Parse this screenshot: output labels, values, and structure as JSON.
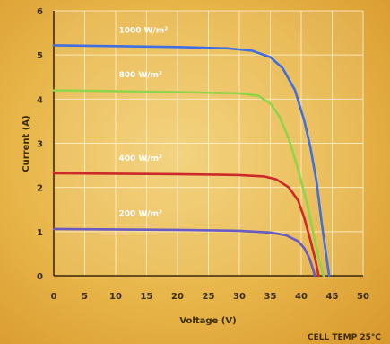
{
  "chart_data": {
    "type": "line",
    "title": "",
    "xlabel": "Voltage (V)",
    "ylabel": "Current (A)",
    "xlim": [
      0,
      50
    ],
    "ylim": [
      0,
      6
    ],
    "xticks": [
      0,
      5,
      10,
      15,
      20,
      25,
      30,
      35,
      40,
      45,
      50
    ],
    "yticks": [
      0,
      1,
      2,
      3,
      4,
      5,
      6
    ],
    "grid": true,
    "legend": "none",
    "footnote": "CELL TEMP 25°C",
    "series": [
      {
        "name": "1000 W/m²",
        "color": "#3f6fe0",
        "points": [
          [
            0,
            5.22
          ],
          [
            10,
            5.2
          ],
          [
            20,
            5.18
          ],
          [
            28,
            5.15
          ],
          [
            32,
            5.1
          ],
          [
            35,
            4.95
          ],
          [
            37,
            4.7
          ],
          [
            39,
            4.2
          ],
          [
            40.5,
            3.5
          ],
          [
            41.5,
            2.9
          ],
          [
            42.5,
            2.1
          ],
          [
            43.3,
            1.2
          ],
          [
            44,
            0.5
          ],
          [
            44.5,
            0
          ]
        ]
      },
      {
        "name": "800 W/m²",
        "color": "#8fd44a",
        "points": [
          [
            0,
            4.2
          ],
          [
            10,
            4.18
          ],
          [
            20,
            4.16
          ],
          [
            30,
            4.13
          ],
          [
            33,
            4.08
          ],
          [
            35,
            3.9
          ],
          [
            36.5,
            3.6
          ],
          [
            38,
            3.1
          ],
          [
            39.5,
            2.4
          ],
          [
            41,
            1.6
          ],
          [
            42.2,
            0.8
          ],
          [
            43,
            0.3
          ],
          [
            43.6,
            0
          ]
        ]
      },
      {
        "name": "400 W/m²",
        "color": "#cc2a2a",
        "points": [
          [
            0,
            2.32
          ],
          [
            10,
            2.31
          ],
          [
            20,
            2.3
          ],
          [
            30,
            2.28
          ],
          [
            34,
            2.25
          ],
          [
            36,
            2.18
          ],
          [
            38,
            2.0
          ],
          [
            39.5,
            1.7
          ],
          [
            40.5,
            1.3
          ],
          [
            41.5,
            0.8
          ],
          [
            42.3,
            0.35
          ],
          [
            42.8,
            0
          ]
        ]
      },
      {
        "name": "200 W/m²",
        "color": "#6a5ac4",
        "points": [
          [
            0,
            1.06
          ],
          [
            10,
            1.05
          ],
          [
            20,
            1.04
          ],
          [
            30,
            1.02
          ],
          [
            35,
            0.98
          ],
          [
            37.5,
            0.92
          ],
          [
            39.5,
            0.78
          ],
          [
            40.5,
            0.62
          ],
          [
            41.3,
            0.4
          ],
          [
            41.9,
            0.15
          ],
          [
            42.2,
            0
          ]
        ]
      }
    ]
  }
}
